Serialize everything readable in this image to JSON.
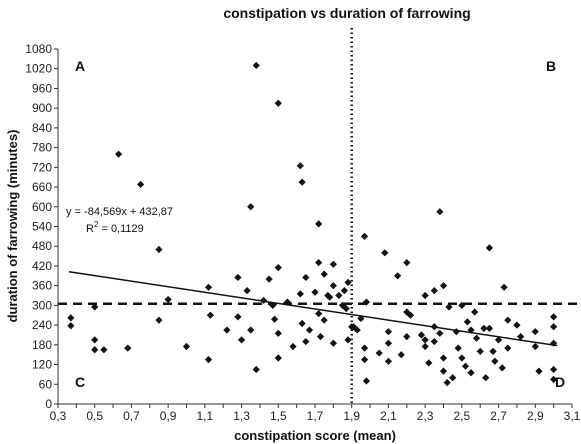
{
  "chart_data": {
    "type": "scatter",
    "title": "constipation vs duration of farrowing",
    "xlabel": "constipation score (mean)",
    "ylabel": "duration of farrowing (minutes)",
    "xlim": [
      0.3,
      3.1
    ],
    "ylim": [
      0,
      1080
    ],
    "x_ticks": [
      "0,3",
      "0,4",
      "0,5",
      "0,6",
      "0,7",
      "0,8",
      "0,9",
      "1",
      "1,1",
      "1,2",
      "1,3",
      "1,4",
      "1,5",
      "1,6",
      "1,7",
      "1,8",
      "1,9",
      "2",
      "2,1",
      "2,2",
      "2,3",
      "2,4",
      "2,5",
      "2,6",
      "2,7",
      "2,8",
      "2,9",
      "3",
      "3,1"
    ],
    "y_ticks": [
      "0",
      "60",
      "120",
      "180",
      "240",
      "300",
      "360",
      "420",
      "480",
      "540",
      "600",
      "660",
      "720",
      "780",
      "840",
      "900",
      "960",
      "1020",
      "1080"
    ],
    "quadrant_labels": [
      "A",
      "B",
      "C",
      "D"
    ],
    "vertical_reference_x": 1.9,
    "horizontal_reference_y": 305,
    "regression": {
      "slope": -84.569,
      "intercept": 432.87
    },
    "equation": "y = -84,569x + 432,87",
    "r2_prefix": "R",
    "r2_exp": "2",
    "r2_value": " = 0,1129",
    "points": [
      [
        0.37,
        262
      ],
      [
        0.37,
        238
      ],
      [
        0.5,
        295
      ],
      [
        0.5,
        195
      ],
      [
        0.5,
        165
      ],
      [
        0.55,
        165
      ],
      [
        0.63,
        760
      ],
      [
        0.68,
        170
      ],
      [
        0.75,
        668
      ],
      [
        0.85,
        470
      ],
      [
        0.85,
        255
      ],
      [
        0.9,
        318
      ],
      [
        1.0,
        175
      ],
      [
        1.12,
        355
      ],
      [
        1.12,
        135
      ],
      [
        1.13,
        270
      ],
      [
        1.22,
        225
      ],
      [
        1.28,
        385
      ],
      [
        1.28,
        265
      ],
      [
        1.3,
        195
      ],
      [
        1.33,
        345
      ],
      [
        1.35,
        600
      ],
      [
        1.35,
        225
      ],
      [
        1.38,
        1030
      ],
      [
        1.38,
        105
      ],
      [
        1.42,
        315
      ],
      [
        1.45,
        380
      ],
      [
        1.47,
        300
      ],
      [
        1.48,
        258
      ],
      [
        1.5,
        915
      ],
      [
        1.5,
        415
      ],
      [
        1.5,
        215
      ],
      [
        1.5,
        140
      ],
      [
        1.55,
        310
      ],
      [
        1.58,
        175
      ],
      [
        1.62,
        725
      ],
      [
        1.62,
        335
      ],
      [
        1.63,
        675
      ],
      [
        1.63,
        245
      ],
      [
        1.65,
        385
      ],
      [
        1.65,
        190
      ],
      [
        1.67,
        225
      ],
      [
        1.7,
        340
      ],
      [
        1.72,
        548
      ],
      [
        1.72,
        430
      ],
      [
        1.72,
        275
      ],
      [
        1.73,
        205
      ],
      [
        1.75,
        395
      ],
      [
        1.75,
        255
      ],
      [
        1.77,
        330
      ],
      [
        1.78,
        325
      ],
      [
        1.8,
        425
      ],
      [
        1.8,
        360
      ],
      [
        1.8,
        185
      ],
      [
        1.83,
        330
      ],
      [
        1.85,
        300
      ],
      [
        1.86,
        345
      ],
      [
        1.87,
        290
      ],
      [
        1.88,
        370
      ],
      [
        1.88,
        195
      ],
      [
        1.9,
        235
      ],
      [
        1.91,
        235
      ],
      [
        1.93,
        225
      ],
      [
        1.95,
        260
      ],
      [
        1.97,
        510
      ],
      [
        1.97,
        170
      ],
      [
        1.97,
        135
      ],
      [
        1.98,
        310
      ],
      [
        1.98,
        70
      ],
      [
        2.05,
        155
      ],
      [
        2.08,
        460
      ],
      [
        2.1,
        220
      ],
      [
        2.1,
        185
      ],
      [
        2.1,
        130
      ],
      [
        2.15,
        390
      ],
      [
        2.17,
        150
      ],
      [
        2.2,
        430
      ],
      [
        2.2,
        280
      ],
      [
        2.2,
        205
      ],
      [
        2.22,
        270
      ],
      [
        2.28,
        210
      ],
      [
        2.3,
        330
      ],
      [
        2.3,
        195
      ],
      [
        2.3,
        175
      ],
      [
        2.32,
        125
      ],
      [
        2.35,
        345
      ],
      [
        2.35,
        235
      ],
      [
        2.35,
        190
      ],
      [
        2.38,
        585
      ],
      [
        2.38,
        215
      ],
      [
        2.4,
        360
      ],
      [
        2.4,
        140
      ],
      [
        2.4,
        100
      ],
      [
        2.42,
        65
      ],
      [
        2.43,
        295
      ],
      [
        2.45,
        80
      ],
      [
        2.47,
        220
      ],
      [
        2.48,
        170
      ],
      [
        2.5,
        300
      ],
      [
        2.5,
        140
      ],
      [
        2.52,
        115
      ],
      [
        2.53,
        250
      ],
      [
        2.55,
        225
      ],
      [
        2.55,
        95
      ],
      [
        2.57,
        280
      ],
      [
        2.58,
        200
      ],
      [
        2.6,
        160
      ],
      [
        2.62,
        230
      ],
      [
        2.63,
        80
      ],
      [
        2.65,
        475
      ],
      [
        2.65,
        230
      ],
      [
        2.67,
        160
      ],
      [
        2.68,
        130
      ],
      [
        2.7,
        195
      ],
      [
        2.72,
        110
      ],
      [
        2.73,
        355
      ],
      [
        2.75,
        255
      ],
      [
        2.75,
        170
      ],
      [
        2.8,
        240
      ],
      [
        2.82,
        205
      ],
      [
        2.9,
        220
      ],
      [
        2.9,
        175
      ],
      [
        2.92,
        100
      ],
      [
        3.0,
        265
      ],
      [
        3.0,
        235
      ],
      [
        3.0,
        185
      ],
      [
        3.0,
        105
      ],
      [
        3.0,
        75
      ]
    ]
  }
}
